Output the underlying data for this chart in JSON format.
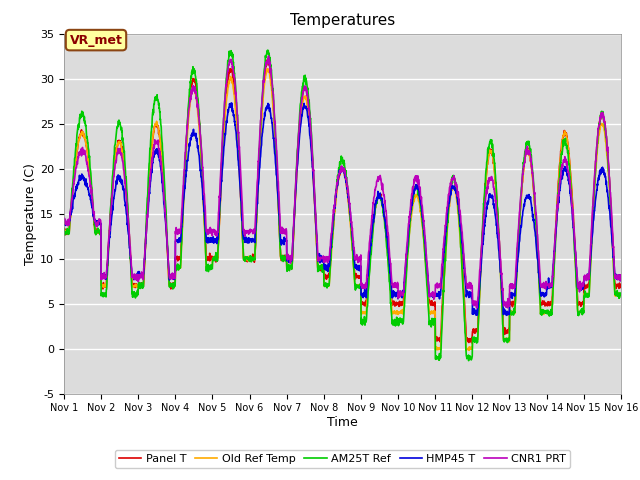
{
  "title": "Temperatures",
  "xlabel": "Time",
  "ylabel": "Temperature (C)",
  "ylim": [
    -5,
    35
  ],
  "xlim": [
    0,
    15
  ],
  "background_color": "#dcdcdc",
  "figure_color": "#ffffff",
  "annotation": "VR_met",
  "series_names": [
    "Panel T",
    "Old Ref Temp",
    "AM25T Ref",
    "HMP45 T",
    "CNR1 PRT"
  ],
  "series_colors": [
    "#dd0000",
    "#ffaa00",
    "#00cc00",
    "#0000dd",
    "#bb00bb"
  ],
  "xtick_labels": [
    "Nov 1",
    "Nov 2",
    "Nov 3",
    "Nov 4",
    "Nov 5",
    "Nov 6",
    "Nov 7",
    "Nov 8",
    "Nov 9",
    "Nov 10",
    "Nov 11",
    "Nov 12",
    "Nov 13",
    "Nov 14",
    "Nov 15",
    "Nov 16"
  ],
  "ytick_values": [
    -5,
    0,
    5,
    10,
    15,
    20,
    25,
    30,
    35
  ],
  "linewidth": 1.2,
  "peaks_red": [
    24,
    23,
    25,
    30,
    31,
    32,
    29,
    20,
    17,
    18,
    19,
    22,
    22,
    24,
    26
  ],
  "peaks_orange": [
    24,
    23,
    25,
    29,
    30,
    31,
    28,
    20,
    17,
    17,
    18,
    22,
    22,
    24,
    25
  ],
  "peaks_green": [
    26,
    25,
    28,
    31,
    33,
    33,
    30,
    21,
    17,
    18,
    19,
    23,
    23,
    23,
    26
  ],
  "peaks_blue": [
    19,
    19,
    22,
    24,
    27,
    27,
    27,
    20,
    17,
    18,
    18,
    17,
    17,
    20,
    20
  ],
  "peaks_purple": [
    22,
    22,
    23,
    29,
    32,
    32,
    29,
    20,
    19,
    19,
    19,
    19,
    22,
    21,
    26
  ],
  "nights_red": [
    13,
    7,
    7,
    10,
    10,
    10,
    9,
    8,
    5,
    5,
    1,
    2,
    5,
    5,
    7
  ],
  "nights_orange": [
    13,
    7,
    7,
    9,
    10,
    10,
    9,
    7,
    4,
    4,
    0,
    1,
    4,
    4,
    6
  ],
  "nights_green": [
    13,
    6,
    7,
    9,
    10,
    10,
    9,
    7,
    3,
    3,
    -1,
    1,
    4,
    4,
    6
  ],
  "nights_blue": [
    14,
    8,
    8,
    12,
    12,
    12,
    10,
    9,
    6,
    6,
    6,
    4,
    6,
    7,
    8
  ],
  "nights_purple": [
    14,
    8,
    8,
    13,
    13,
    13,
    10,
    10,
    7,
    6,
    7,
    5,
    7,
    7,
    8
  ]
}
